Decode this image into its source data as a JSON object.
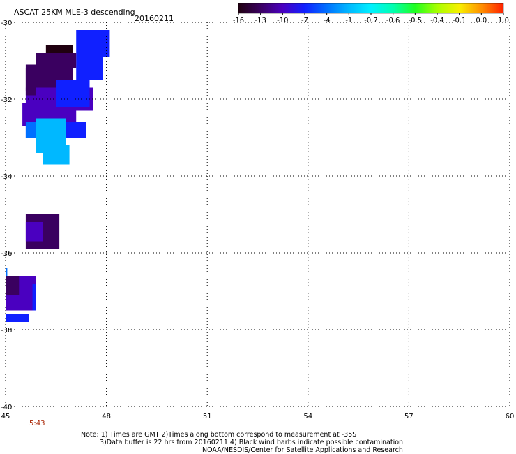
{
  "header": {
    "title": "ASCAT 25KM MLE-3 descending",
    "date": "20160211"
  },
  "colorbar": {
    "tick_labels": [
      "-16",
      "-13",
      "-10",
      "-7",
      "-4",
      "-1",
      "-0.7",
      "-0.6",
      "-0.5",
      "-0.4",
      "-0.1",
      "0.0",
      "1.0"
    ],
    "colors": [
      "#200010",
      "#3a0060",
      "#4a00c0",
      "#1020ff",
      "#0070ff",
      "#00b8ff",
      "#00f0ff",
      "#00ffb0",
      "#20ff20",
      "#a8ff00",
      "#f8f000",
      "#ff9000",
      "#ff2000"
    ]
  },
  "map": {
    "lon_range": [
      45,
      60
    ],
    "lat_range": [
      -40,
      -30
    ],
    "lon_ticks": [
      "45",
      "48",
      "51",
      "54",
      "57",
      "60"
    ],
    "lat_ticks": [
      "-30",
      "-32",
      "-34",
      "-36",
      "-38",
      "-40"
    ],
    "grid": "dotted"
  },
  "cells": [
    {
      "lon": 47.1,
      "lat": -30.2,
      "w": 1.0,
      "h": 0.7,
      "mle": -7
    },
    {
      "lon": 47.1,
      "lat": -30.9,
      "w": 0.8,
      "h": 0.6,
      "mle": -7
    },
    {
      "lon": 46.2,
      "lat": -30.6,
      "w": 0.8,
      "h": 0.3,
      "mle": -16
    },
    {
      "lon": 45.9,
      "lat": -30.8,
      "w": 1.2,
      "h": 0.4,
      "mle": -13
    },
    {
      "lon": 45.6,
      "lat": -31.2,
      "w": 1.4,
      "h": 0.6,
      "mle": -13
    },
    {
      "lon": 45.6,
      "lat": -31.7,
      "w": 2.0,
      "h": 0.6,
      "mle": -10
    },
    {
      "lon": 45.5,
      "lat": -32.1,
      "w": 1.6,
      "h": 0.6,
      "mle": -10
    },
    {
      "lon": 46.5,
      "lat": -31.5,
      "w": 1.0,
      "h": 0.7,
      "mle": -7
    },
    {
      "lon": 45.6,
      "lat": -32.6,
      "w": 1.8,
      "h": 0.4,
      "mle": -7
    },
    {
      "lon": 45.6,
      "lat": -32.6,
      "w": 1.0,
      "h": 0.4,
      "mle": -4
    },
    {
      "lon": 45.9,
      "lat": -32.5,
      "w": 0.9,
      "h": 0.9,
      "mle": -1
    },
    {
      "lon": 46.1,
      "lat": -33.2,
      "w": 0.8,
      "h": 0.5,
      "mle": -1
    },
    {
      "lon": 45.6,
      "lat": -31.1,
      "w": 0.3,
      "h": 0.8,
      "mle": -13
    },
    {
      "lon": 45.6,
      "lat": -35.0,
      "w": 1.0,
      "h": 0.9,
      "mle": -13
    },
    {
      "lon": 45.6,
      "lat": -35.2,
      "w": 0.5,
      "h": 0.5,
      "mle": -10
    },
    {
      "lon": 45.0,
      "lat": -36.6,
      "w": 0.9,
      "h": 0.9,
      "mle": -10
    },
    {
      "lon": 45.8,
      "lat": -36.8,
      "w": 0.1,
      "h": 0.7,
      "mle": -7
    },
    {
      "lon": 45.0,
      "lat": -37.6,
      "w": 0.7,
      "h": 0.2,
      "mle": -7
    },
    {
      "lon": 45.0,
      "lat": -36.6,
      "w": 0.4,
      "h": 0.5,
      "mle": -13
    },
    {
      "lon": 45.0,
      "lat": -36.4,
      "w": 0.05,
      "h": 0.2,
      "mle": -4
    }
  ],
  "footer": {
    "time_label": "5:43",
    "note_line1": "Note: 1) Times are GMT 2)Times along bottom correspond to measurement at -35S",
    "note_line2": "3)Data buffer is 22 hrs from 20160211 4) Black wind barbs indicate possible contamination",
    "note_line3": "NOAA/NESDIS/Center for Satellite Applications and Research"
  }
}
